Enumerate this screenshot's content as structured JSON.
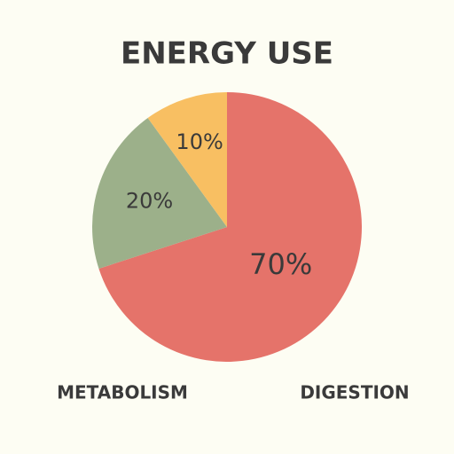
{
  "chart_data": {
    "type": "pie",
    "title": "ENERGY USE",
    "categories": [
      "METABOLISM",
      "DIGESTION",
      null
    ],
    "values": [
      70,
      20,
      10
    ],
    "value_labels": [
      "70%",
      "20%",
      "10%"
    ],
    "colors": [
      "#e5736a",
      "#9cb08a",
      "#f8bf62"
    ]
  }
}
